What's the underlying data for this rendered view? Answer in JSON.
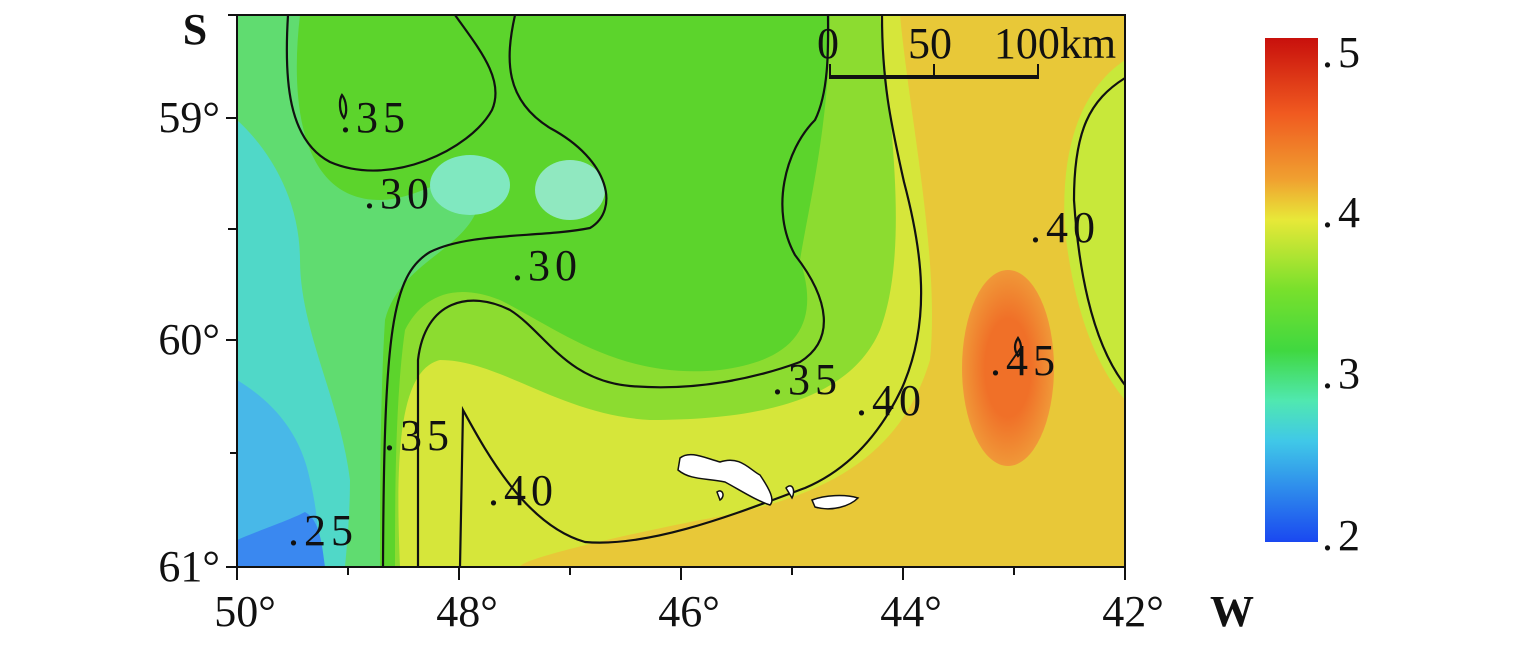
{
  "map": {
    "x_labels": [
      "50°",
      "48°",
      "46°",
      "44°",
      "42°"
    ],
    "x_unit": "W",
    "y_labels": [
      "59°",
      "60°",
      "61°"
    ],
    "y_unit": "S",
    "scale_bar": [
      "0",
      "50",
      "100km"
    ],
    "contour_labels": [
      ".35",
      ".30",
      ".30",
      ".35",
      ".40",
      ".40",
      ".45",
      ".35",
      ".40",
      ".25"
    ],
    "colorbar_labels": [
      ".5",
      ".4",
      ".3",
      ".2"
    ]
  }
}
